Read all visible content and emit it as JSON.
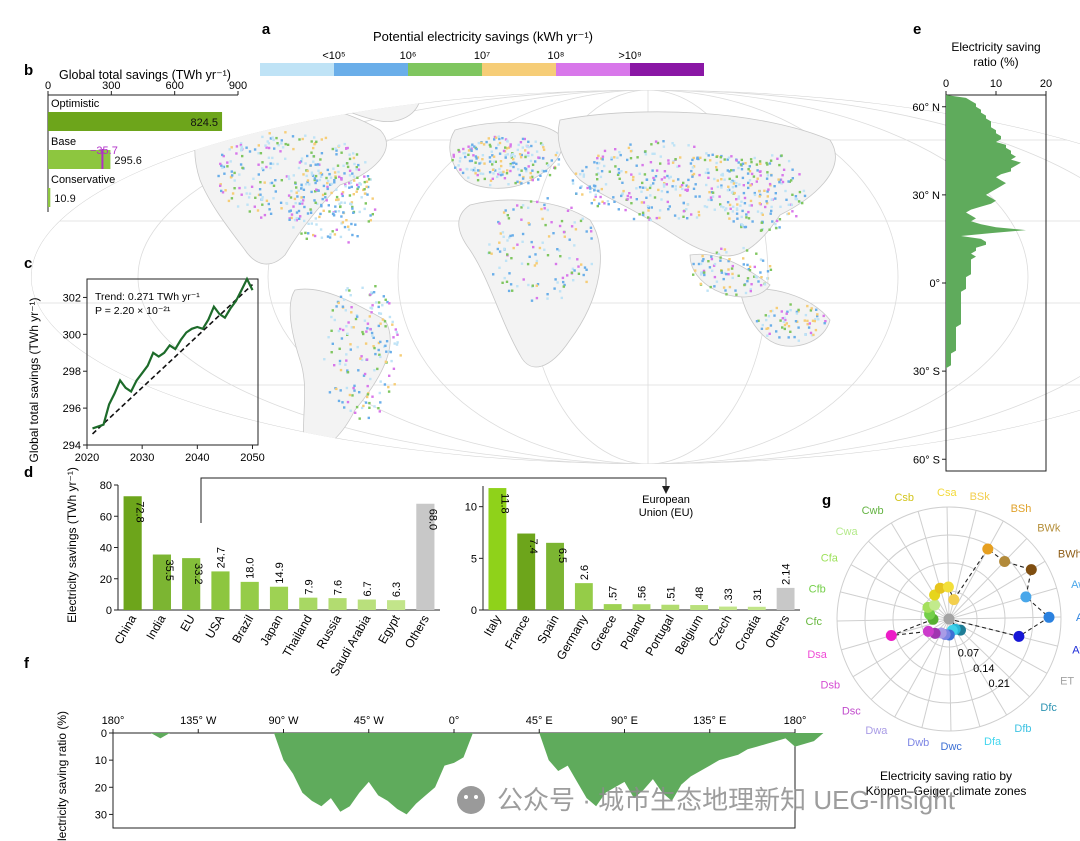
{
  "panel_letters": [
    "a",
    "b",
    "c",
    "d",
    "e",
    "f",
    "g"
  ],
  "chart_data": [
    {
      "panel": "a",
      "type": "heatmap",
      "title": "Potential electricity savings (kWh yr⁻¹)",
      "legend_ticks": [
        "<10⁵",
        "10⁶",
        "10⁷",
        "10⁸",
        ">10⁹"
      ],
      "legend_colors": [
        "#bfe3f6",
        "#6aaee9",
        "#7fc65f",
        "#f6cd77",
        "#d877ea",
        "#8a17a5"
      ]
    },
    {
      "panel": "b",
      "type": "bar",
      "title": "Global total savings (TWh yr⁻¹)",
      "xlim": [
        0,
        900
      ],
      "xticks": [
        "0",
        "300",
        "600",
        "900"
      ],
      "categories": [
        "Optimistic",
        "Base",
        "Conservative"
      ],
      "values": [
        824.5,
        295.6,
        10.9
      ],
      "value_labels": [
        "824.5",
        "295.6",
        "10.9"
      ],
      "annotation": "−35.7",
      "colors": [
        "#6da51b",
        "#8dc63f",
        "#8dc63f"
      ]
    },
    {
      "panel": "c",
      "type": "line",
      "ylabel": "Global total savings (TWh yr⁻¹)",
      "xlim": [
        2020,
        2051
      ],
      "ylim": [
        294,
        303
      ],
      "xticks": [
        "2020",
        "2030",
        "2040",
        "2050"
      ],
      "yticks": [
        "294",
        "296",
        "298",
        "300",
        "302"
      ],
      "x": [
        2021,
        2022,
        2023,
        2024,
        2025,
        2026,
        2027,
        2028,
        2029,
        2030,
        2031,
        2032,
        2033,
        2034,
        2035,
        2036,
        2037,
        2038,
        2039,
        2040,
        2041,
        2042,
        2043,
        2044,
        2045,
        2046,
        2047,
        2048,
        2049,
        2050
      ],
      "y": [
        294.9,
        295.0,
        295.1,
        296.2,
        296.8,
        297.5,
        297.1,
        296.9,
        297.5,
        297.9,
        298.3,
        299.0,
        298.8,
        299.0,
        299.4,
        299.2,
        299.7,
        300.1,
        300.3,
        300.4,
        300.3,
        300.8,
        301.5,
        301.1,
        300.9,
        301.4,
        301.8,
        302.4,
        303.0,
        302.4
      ],
      "trend": [
        294.6,
        302.7
      ],
      "annotation_lines": [
        "Trend: 0.271 TWh yr⁻¹",
        "P = 2.20 × 10⁻²¹"
      ]
    },
    {
      "panel": "d-left",
      "type": "bar",
      "ylabel": "Electricity savings (TWh yr⁻¹)",
      "ylim": [
        0,
        80
      ],
      "yticks": [
        "0",
        "20",
        "40",
        "60",
        "80"
      ],
      "categories": [
        "China",
        "India",
        "EU",
        "USA",
        "Brazil",
        "Japan",
        "Thailand",
        "Russia",
        "Saudi Arabia",
        "Egypt",
        "Others"
      ],
      "values": [
        72.8,
        35.5,
        33.2,
        24.7,
        18.0,
        14.9,
        7.9,
        7.6,
        6.7,
        6.3,
        68.0
      ],
      "value_labels": [
        "72.8",
        "35.5",
        "33.2",
        "24.7",
        "18.0",
        "14.9",
        "7.9",
        "7.6",
        "6.7",
        "6.3",
        "68.0"
      ],
      "colors": [
        "#6da51b",
        "#7cb532",
        "#84be3a",
        "#8dc63f",
        "#95cc48",
        "#9ed253",
        "#a8d863",
        "#b2dc70",
        "#b9e07c",
        "#c2e58a",
        "#c8c8c8"
      ]
    },
    {
      "panel": "d-right",
      "type": "bar",
      "annotation": "European Union (EU)",
      "ylim": [
        0,
        12
      ],
      "yticks": [
        "0",
        "5",
        "10"
      ],
      "categories": [
        "Italy",
        "France",
        "Spain",
        "Germany",
        "Greece",
        "Poland",
        "Portugal",
        "Belgium",
        "Czech",
        "Croatia",
        "Others"
      ],
      "values": [
        11.8,
        7.4,
        6.5,
        2.6,
        0.57,
        0.56,
        0.51,
        0.48,
        0.33,
        0.31,
        2.14
      ],
      "value_labels": [
        "11.8",
        "7.4",
        "6.5",
        "2.6",
        ".57",
        ".56",
        ".51",
        ".48",
        ".33",
        ".31",
        "2.14"
      ],
      "colors": [
        "#8fd21a",
        "#6da51b",
        "#7cb532",
        "#95cc48",
        "#9ed253",
        "#a8d863",
        "#b2dc70",
        "#b9e07c",
        "#c2e58a",
        "#c2e58a",
        "#c8c8c8"
      ]
    },
    {
      "panel": "e",
      "type": "area",
      "title": "Electricity saving ratio (%)",
      "xlim": [
        0,
        20
      ],
      "xticks": [
        "0",
        "10",
        "20"
      ],
      "yticks": [
        "60° N",
        "30° N",
        "0°",
        "30° S",
        "60° S"
      ],
      "lat_step": 1,
      "lat_start": 64,
      "ratio_by_lat": [
        0,
        4,
        5,
        6,
        6,
        7,
        7,
        8,
        8,
        9,
        9,
        9,
        10,
        10,
        11,
        11,
        10,
        12,
        12,
        13,
        13,
        14,
        13,
        15,
        14,
        13,
        13,
        11,
        10,
        11,
        12,
        11,
        10,
        9,
        8,
        9,
        10,
        9,
        7,
        5,
        4,
        5,
        6,
        5,
        7,
        10,
        16,
        9,
        3,
        7,
        8,
        8,
        6,
        6,
        5,
        6,
        5,
        5,
        5,
        5,
        5,
        5,
        4,
        4,
        4,
        4,
        4,
        3,
        3,
        3,
        3,
        3,
        3,
        3,
        3,
        3,
        3,
        3,
        3,
        2,
        2,
        2,
        2,
        2,
        2,
        2,
        2,
        2,
        1,
        1,
        1,
        1,
        1,
        0,
        0,
        0,
        0,
        0,
        0,
        0,
        0,
        0,
        0,
        0,
        0,
        0,
        0,
        0,
        0,
        0,
        0,
        0,
        0,
        0,
        0,
        0,
        0,
        0,
        0,
        0,
        0,
        0,
        0,
        0
      ],
      "color": "#5fab5c"
    },
    {
      "panel": "f",
      "type": "area",
      "ylabel": "Electricity saving ratio (%)",
      "xticks": [
        "180°",
        "135° W",
        "90° W",
        "45° W",
        "0°",
        "45° E",
        "90° E",
        "135° E",
        "180°"
      ],
      "yticks": [
        "0",
        "10",
        "20",
        "30"
      ],
      "ylim": [
        0,
        35
      ],
      "lon_step": 5,
      "lon_start": -180,
      "ratio_by_lon": [
        0,
        0,
        0,
        0,
        0,
        2,
        0,
        0,
        0,
        0,
        0,
        0,
        0,
        0,
        0,
        0,
        0,
        0,
        10,
        15,
        22,
        25,
        27,
        24,
        29,
        27,
        22,
        18,
        23,
        25,
        28,
        30,
        26,
        23,
        20,
        12,
        11,
        9,
        0,
        0,
        0,
        0,
        0,
        0,
        0,
        0,
        10,
        14,
        12,
        18,
        24,
        27,
        22,
        20,
        18,
        24,
        21,
        17,
        22,
        25,
        19,
        16,
        14,
        12,
        10,
        9,
        8,
        6,
        5,
        4,
        3,
        2,
        5,
        4,
        3,
        0,
        0,
        0,
        0
      ],
      "color": "#5fab5c"
    },
    {
      "panel": "g",
      "type": "scatter",
      "title": "Electricity saving ratio by Köppen–Geiger climate zones",
      "ring_labels": [
        "0",
        "0.07",
        "0.14",
        "0.21"
      ],
      "zones": [
        "BSk",
        "BSh",
        "BWk",
        "BWh",
        "Aw",
        "Am",
        "Af",
        "ET",
        "Dfc",
        "Dfb",
        "Dfa",
        "Dwc",
        "Dwb",
        "Dwa",
        "Dsc",
        "Dsb",
        "Dsa",
        "Cfc",
        "Cfb",
        "Cfa",
        "Cwa",
        "Cwb",
        "Csb",
        "Csa"
      ],
      "values": [
        0.05,
        0.2,
        0.2,
        0.24,
        0.2,
        0.25,
        0.18,
        0.0,
        0.04,
        0.03,
        0.03,
        0.04,
        0.04,
        0.04,
        0.05,
        0.06,
        0.15,
        0.04,
        0.05,
        0.06,
        0.05,
        0.07,
        0.08,
        0.08
      ],
      "label_colors": [
        "#f3cf4e",
        "#e0a22a",
        "#b58f3a",
        "#8e5d17",
        "#49a7ea",
        "#2b81df",
        "#1c2bd8",
        "#a3a3a3",
        "#2c93b2",
        "#3fc3e3",
        "#44d6ee",
        "#3c6fd3",
        "#7e86e4",
        "#a99ce6",
        "#c14ccc",
        "#d44bd2",
        "#ef4ad6",
        "#67b83e",
        "#74cf49",
        "#9de25a",
        "#b4ea8a",
        "#65b443",
        "#d2c51c",
        "#f3da3a"
      ],
      "dot_colors": [
        "#f3cf4e",
        "#e69f20",
        "#b28a3a",
        "#7f4e10",
        "#49a7ea",
        "#2b81df",
        "#1616d6",
        "#a3a3a3",
        "#1f7d96",
        "#29b6d6",
        "#3fd2ea",
        "#3c6fd3",
        "#7e86e4",
        "#a99ce6",
        "#a034b0",
        "#cc3bcb",
        "#ec1cc7",
        "#57b032",
        "#74cf49",
        "#a5e05d",
        "#c2ea8c",
        "#e6d51c",
        "#e6c41c",
        "#f3df3a"
      ]
    }
  ],
  "watermark": "公众号 · 城市生态地理新知 UEG-Insight"
}
